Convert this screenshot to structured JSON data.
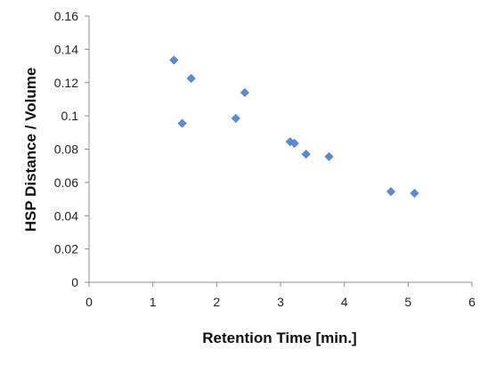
{
  "chart_data": {
    "type": "scatter",
    "title": "",
    "xlabel": "Retention Time [min.]",
    "ylabel": "HSP Distance / Volume",
    "xlim": [
      0,
      6
    ],
    "ylim": [
      0,
      0.16
    ],
    "xticks": [
      "0",
      "1",
      "2",
      "3",
      "4",
      "5",
      "6"
    ],
    "yticks": [
      "0",
      "0.02",
      "0.04",
      "0.06",
      "0.08",
      "0.1",
      "0.12",
      "0.14",
      "0.16"
    ],
    "grid": "none",
    "marker": "diamond",
    "marker_color": "#5a8ed0",
    "series": [
      {
        "x": [
          1.33,
          1.46,
          1.6,
          2.3,
          2.44,
          3.15,
          3.22,
          3.4,
          3.76,
          4.73,
          5.1
        ],
        "y": [
          0.1335,
          0.0955,
          0.1225,
          0.0985,
          0.114,
          0.0845,
          0.0835,
          0.077,
          0.0755,
          0.0545,
          0.0535
        ]
      }
    ]
  }
}
